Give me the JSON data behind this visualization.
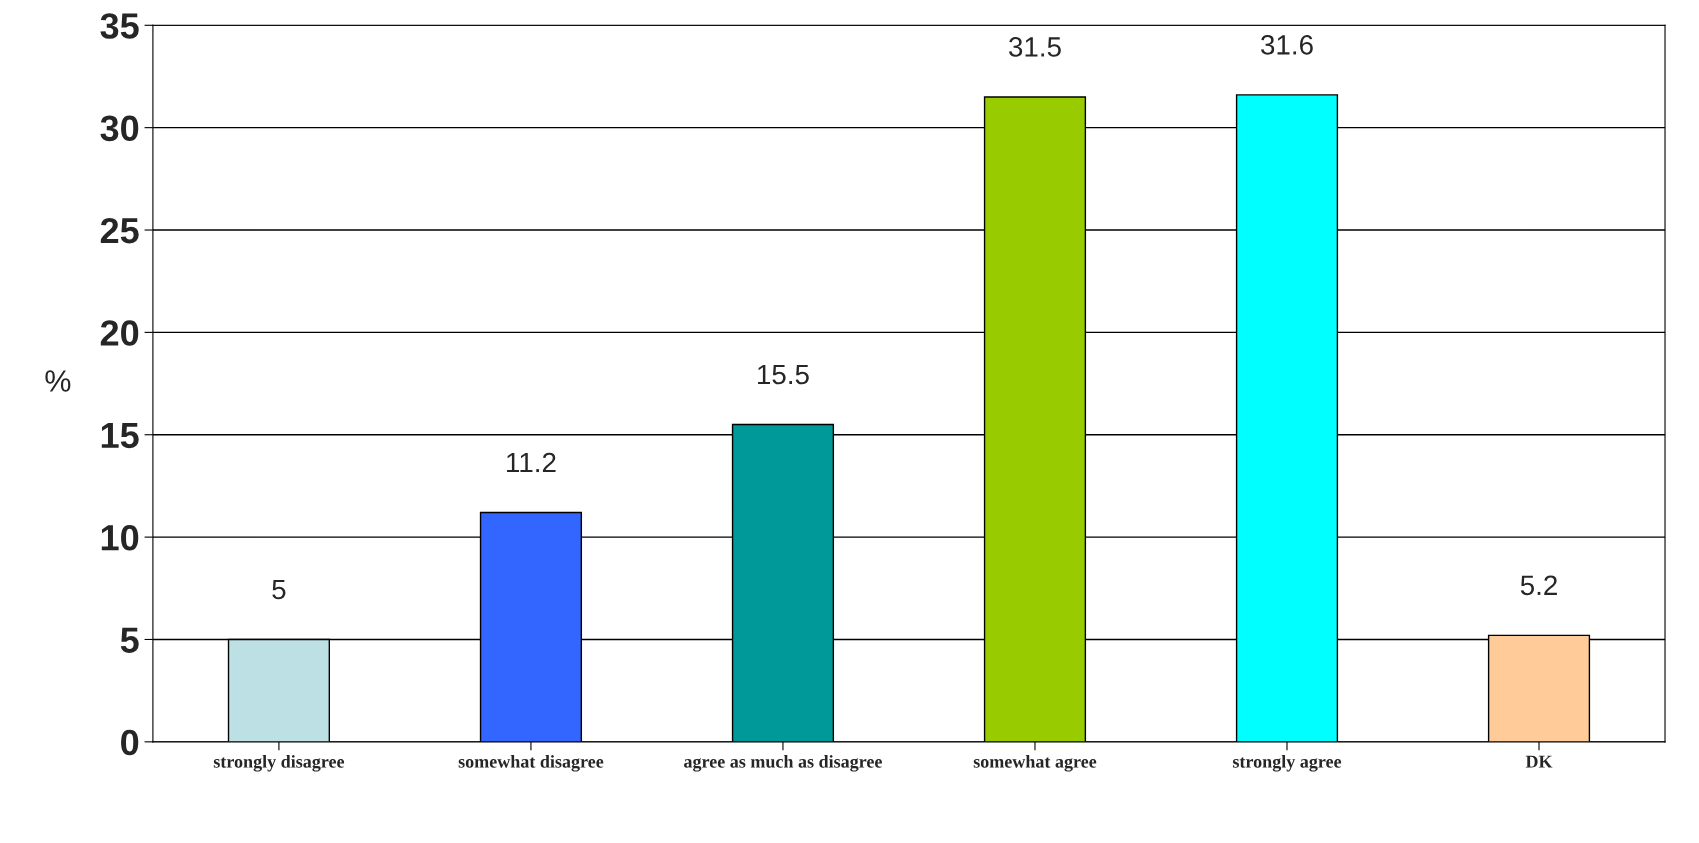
{
  "chart_data": {
    "type": "bar",
    "ylabel": "%",
    "categories": [
      "strongly disagree",
      "somewhat disagree",
      "agree as much as disagree",
      "somewhat agree",
      "strongly agree",
      "DK"
    ],
    "values": [
      5,
      11.2,
      15.5,
      31.5,
      31.6,
      5.2
    ],
    "colors": [
      "#bce0e3",
      "#3366ff",
      "#009999",
      "#99cc00",
      "#00ffff",
      "#ffcc99"
    ],
    "ylim": [
      0,
      35
    ],
    "yticks": [
      0,
      5,
      10,
      15,
      20,
      25,
      30,
      35
    ],
    "grid": "y",
    "data_labels": true
  }
}
